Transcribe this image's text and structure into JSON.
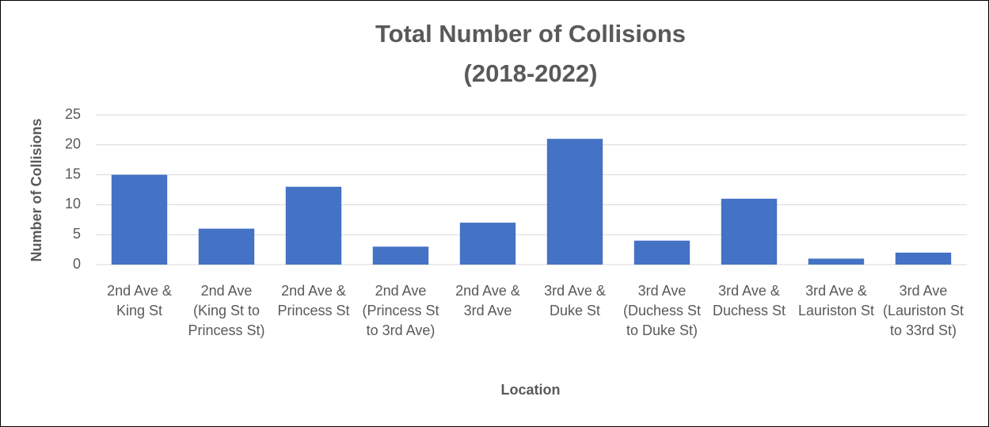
{
  "chart_data": {
    "type": "bar",
    "title": "Total Number of Collisions (2018-2022)",
    "x_label": "Location",
    "y_label": "Number of Collisions",
    "categories": [
      "2nd Ave & King St",
      "2nd Ave (King St to Princess St)",
      "2nd Ave & Princess St",
      "2nd Ave (Princess St to 3rd Ave)",
      "2nd Ave & 3rd Ave",
      "3rd Ave & Duke St",
      "3rd Ave (Duchess St to Duke St)",
      "3rd Ave & Duchess St",
      "3rd Ave & Lauriston St",
      "3rd Ave (Lauriston St to 33rd St)"
    ],
    "values": [
      15,
      6,
      13,
      3,
      7,
      21,
      4,
      11,
      1,
      2
    ],
    "color": "#4472c4",
    "ylim": [
      0,
      25
    ],
    "yticks": [
      0,
      5,
      10,
      15,
      20,
      25
    ],
    "grid": true
  }
}
